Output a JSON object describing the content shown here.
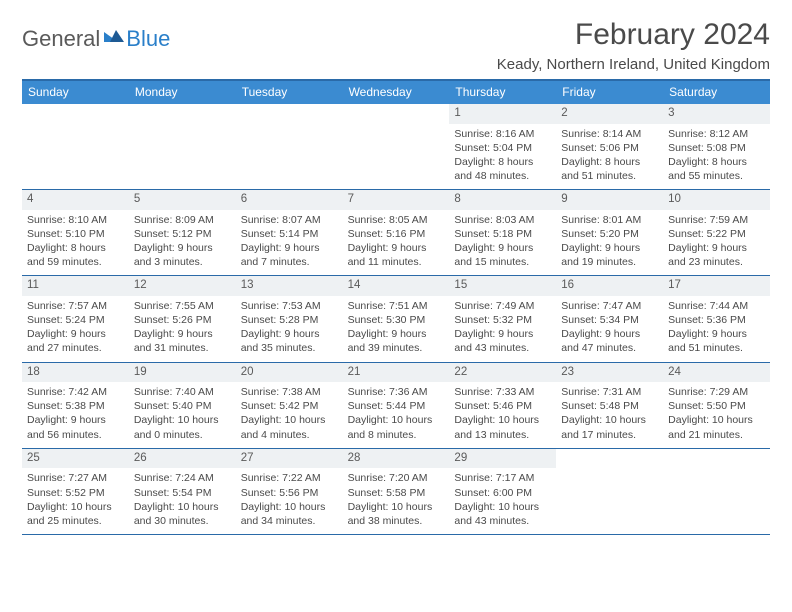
{
  "brand": {
    "part1": "General",
    "part2": "Blue"
  },
  "title": "February 2024",
  "location": "Keady, Northern Ireland, United Kingdom",
  "colors": {
    "header_bg": "#3b8bd1",
    "border": "#2a6aa8",
    "daynum_bg": "#eef1f3",
    "text": "#4a4a4a",
    "brand_gray": "#5a5a5a",
    "brand_blue": "#2a7fc9"
  },
  "weekdays": [
    "Sunday",
    "Monday",
    "Tuesday",
    "Wednesday",
    "Thursday",
    "Friday",
    "Saturday"
  ],
  "weeks": [
    [
      null,
      null,
      null,
      null,
      {
        "n": "1",
        "sr": "Sunrise: 8:16 AM",
        "ss": "Sunset: 5:04 PM",
        "d1": "Daylight: 8 hours",
        "d2": "and 48 minutes."
      },
      {
        "n": "2",
        "sr": "Sunrise: 8:14 AM",
        "ss": "Sunset: 5:06 PM",
        "d1": "Daylight: 8 hours",
        "d2": "and 51 minutes."
      },
      {
        "n": "3",
        "sr": "Sunrise: 8:12 AM",
        "ss": "Sunset: 5:08 PM",
        "d1": "Daylight: 8 hours",
        "d2": "and 55 minutes."
      }
    ],
    [
      {
        "n": "4",
        "sr": "Sunrise: 8:10 AM",
        "ss": "Sunset: 5:10 PM",
        "d1": "Daylight: 8 hours",
        "d2": "and 59 minutes."
      },
      {
        "n": "5",
        "sr": "Sunrise: 8:09 AM",
        "ss": "Sunset: 5:12 PM",
        "d1": "Daylight: 9 hours",
        "d2": "and 3 minutes."
      },
      {
        "n": "6",
        "sr": "Sunrise: 8:07 AM",
        "ss": "Sunset: 5:14 PM",
        "d1": "Daylight: 9 hours",
        "d2": "and 7 minutes."
      },
      {
        "n": "7",
        "sr": "Sunrise: 8:05 AM",
        "ss": "Sunset: 5:16 PM",
        "d1": "Daylight: 9 hours",
        "d2": "and 11 minutes."
      },
      {
        "n": "8",
        "sr": "Sunrise: 8:03 AM",
        "ss": "Sunset: 5:18 PM",
        "d1": "Daylight: 9 hours",
        "d2": "and 15 minutes."
      },
      {
        "n": "9",
        "sr": "Sunrise: 8:01 AM",
        "ss": "Sunset: 5:20 PM",
        "d1": "Daylight: 9 hours",
        "d2": "and 19 minutes."
      },
      {
        "n": "10",
        "sr": "Sunrise: 7:59 AM",
        "ss": "Sunset: 5:22 PM",
        "d1": "Daylight: 9 hours",
        "d2": "and 23 minutes."
      }
    ],
    [
      {
        "n": "11",
        "sr": "Sunrise: 7:57 AM",
        "ss": "Sunset: 5:24 PM",
        "d1": "Daylight: 9 hours",
        "d2": "and 27 minutes."
      },
      {
        "n": "12",
        "sr": "Sunrise: 7:55 AM",
        "ss": "Sunset: 5:26 PM",
        "d1": "Daylight: 9 hours",
        "d2": "and 31 minutes."
      },
      {
        "n": "13",
        "sr": "Sunrise: 7:53 AM",
        "ss": "Sunset: 5:28 PM",
        "d1": "Daylight: 9 hours",
        "d2": "and 35 minutes."
      },
      {
        "n": "14",
        "sr": "Sunrise: 7:51 AM",
        "ss": "Sunset: 5:30 PM",
        "d1": "Daylight: 9 hours",
        "d2": "and 39 minutes."
      },
      {
        "n": "15",
        "sr": "Sunrise: 7:49 AM",
        "ss": "Sunset: 5:32 PM",
        "d1": "Daylight: 9 hours",
        "d2": "and 43 minutes."
      },
      {
        "n": "16",
        "sr": "Sunrise: 7:47 AM",
        "ss": "Sunset: 5:34 PM",
        "d1": "Daylight: 9 hours",
        "d2": "and 47 minutes."
      },
      {
        "n": "17",
        "sr": "Sunrise: 7:44 AM",
        "ss": "Sunset: 5:36 PM",
        "d1": "Daylight: 9 hours",
        "d2": "and 51 minutes."
      }
    ],
    [
      {
        "n": "18",
        "sr": "Sunrise: 7:42 AM",
        "ss": "Sunset: 5:38 PM",
        "d1": "Daylight: 9 hours",
        "d2": "and 56 minutes."
      },
      {
        "n": "19",
        "sr": "Sunrise: 7:40 AM",
        "ss": "Sunset: 5:40 PM",
        "d1": "Daylight: 10 hours",
        "d2": "and 0 minutes."
      },
      {
        "n": "20",
        "sr": "Sunrise: 7:38 AM",
        "ss": "Sunset: 5:42 PM",
        "d1": "Daylight: 10 hours",
        "d2": "and 4 minutes."
      },
      {
        "n": "21",
        "sr": "Sunrise: 7:36 AM",
        "ss": "Sunset: 5:44 PM",
        "d1": "Daylight: 10 hours",
        "d2": "and 8 minutes."
      },
      {
        "n": "22",
        "sr": "Sunrise: 7:33 AM",
        "ss": "Sunset: 5:46 PM",
        "d1": "Daylight: 10 hours",
        "d2": "and 13 minutes."
      },
      {
        "n": "23",
        "sr": "Sunrise: 7:31 AM",
        "ss": "Sunset: 5:48 PM",
        "d1": "Daylight: 10 hours",
        "d2": "and 17 minutes."
      },
      {
        "n": "24",
        "sr": "Sunrise: 7:29 AM",
        "ss": "Sunset: 5:50 PM",
        "d1": "Daylight: 10 hours",
        "d2": "and 21 minutes."
      }
    ],
    [
      {
        "n": "25",
        "sr": "Sunrise: 7:27 AM",
        "ss": "Sunset: 5:52 PM",
        "d1": "Daylight: 10 hours",
        "d2": "and 25 minutes."
      },
      {
        "n": "26",
        "sr": "Sunrise: 7:24 AM",
        "ss": "Sunset: 5:54 PM",
        "d1": "Daylight: 10 hours",
        "d2": "and 30 minutes."
      },
      {
        "n": "27",
        "sr": "Sunrise: 7:22 AM",
        "ss": "Sunset: 5:56 PM",
        "d1": "Daylight: 10 hours",
        "d2": "and 34 minutes."
      },
      {
        "n": "28",
        "sr": "Sunrise: 7:20 AM",
        "ss": "Sunset: 5:58 PM",
        "d1": "Daylight: 10 hours",
        "d2": "and 38 minutes."
      },
      {
        "n": "29",
        "sr": "Sunrise: 7:17 AM",
        "ss": "Sunset: 6:00 PM",
        "d1": "Daylight: 10 hours",
        "d2": "and 43 minutes."
      },
      null,
      null
    ]
  ]
}
